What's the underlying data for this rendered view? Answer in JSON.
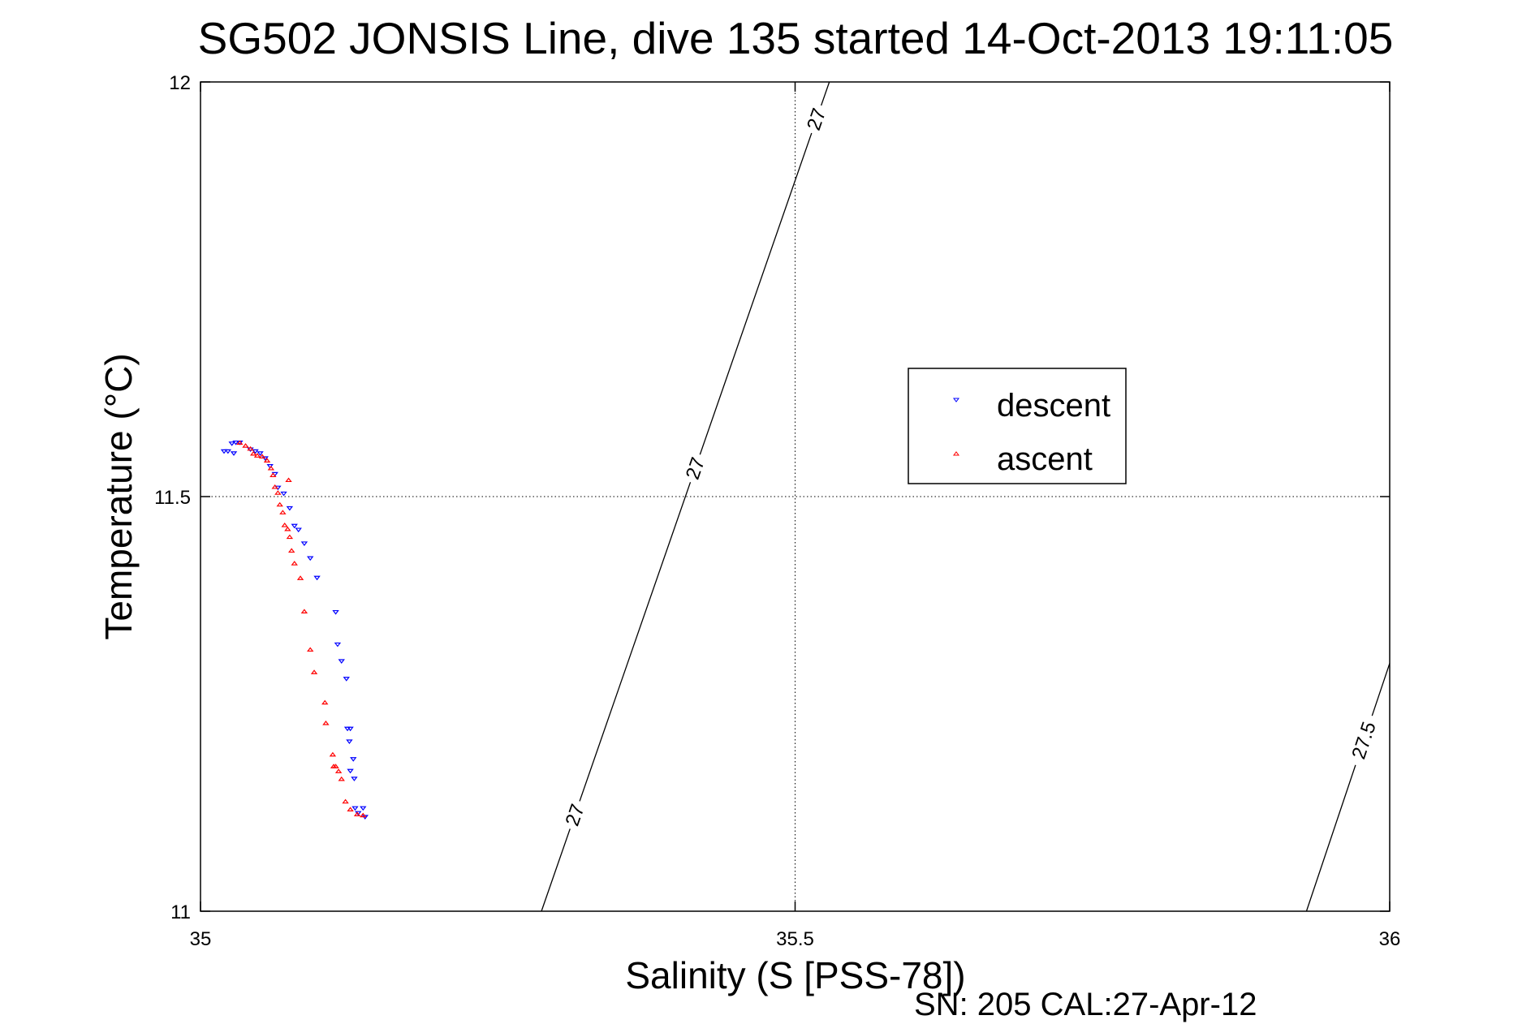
{
  "chart_data": {
    "type": "scatter",
    "title": "SG502 JONSIS Line, dive 135 started 14-Oct-2013 19:11:05",
    "xlabel": "Salinity (S [PSS-78])",
    "ylabel": "Temperature (°C)",
    "footnote": "SN: 205  CAL:27-Apr-12",
    "xlim": [
      35,
      36
    ],
    "ylim": [
      11,
      12
    ],
    "xticks": [
      35,
      35.5,
      36
    ],
    "xtick_labels": [
      "35",
      "35.5",
      "36"
    ],
    "yticks": [
      11,
      11.5,
      12
    ],
    "ytick_labels": [
      "11",
      "11.5",
      "12"
    ],
    "grid": true,
    "legend_position": "center-right",
    "series": [
      {
        "name": "descent",
        "color": "#0000ff",
        "marker": "triangle-down",
        "points": [
          [
            35.0198,
            11.5544
          ],
          [
            35.0231,
            11.5544
          ],
          [
            35.0264,
            11.5638
          ],
          [
            35.0297,
            11.565
          ],
          [
            35.028,
            11.552
          ],
          [
            35.033,
            11.565
          ],
          [
            35.042,
            11.5567
          ],
          [
            35.0461,
            11.5544
          ],
          [
            35.0502,
            11.552
          ],
          [
            35.0544,
            11.546
          ],
          [
            35.0585,
            11.5366
          ],
          [
            35.0626,
            11.527
          ],
          [
            35.0651,
            11.5106
          ],
          [
            35.07,
            11.5035
          ],
          [
            35.075,
            11.4858
          ],
          [
            35.079,
            11.4645
          ],
          [
            35.0824,
            11.4598
          ],
          [
            35.0873,
            11.4433
          ],
          [
            35.0923,
            11.4255
          ],
          [
            35.098,
            11.4019
          ],
          [
            35.1137,
            11.3605
          ],
          [
            35.1153,
            11.3215
          ],
          [
            35.1186,
            11.3014
          ],
          [
            35.1227,
            11.2801
          ],
          [
            35.1236,
            11.2199
          ],
          [
            35.126,
            11.2199
          ],
          [
            35.1252,
            11.2045
          ],
          [
            35.1285,
            11.1832
          ],
          [
            35.126,
            11.169
          ],
          [
            35.1293,
            11.1596
          ],
          [
            35.13,
            11.1241
          ],
          [
            35.1367,
            11.1241
          ],
          [
            35.1326,
            11.1182
          ],
          [
            35.1384,
            11.1135
          ]
        ]
      },
      {
        "name": "ascent",
        "color": "#ff0000",
        "marker": "triangle-up",
        "points": [
          [
            35.033,
            11.565
          ],
          [
            35.0379,
            11.5615
          ],
          [
            35.042,
            11.5579
          ],
          [
            35.0445,
            11.552
          ],
          [
            35.0478,
            11.5496
          ],
          [
            35.0519,
            11.5485
          ],
          [
            35.056,
            11.5437
          ],
          [
            35.0593,
            11.5343
          ],
          [
            35.061,
            11.526
          ],
          [
            35.0626,
            11.5118
          ],
          [
            35.0741,
            11.5201
          ],
          [
            35.0651,
            11.5047
          ],
          [
            35.0667,
            11.4905
          ],
          [
            35.0692,
            11.4811
          ],
          [
            35.0708,
            11.4657
          ],
          [
            35.0733,
            11.461
          ],
          [
            35.075,
            11.4515
          ],
          [
            35.0766,
            11.435
          ],
          [
            35.079,
            11.4196
          ],
          [
            35.084,
            11.4019
          ],
          [
            35.0873,
            11.3617
          ],
          [
            35.0923,
            11.3156
          ],
          [
            35.0956,
            11.2884
          ],
          [
            35.1046,
            11.2518
          ],
          [
            35.1054,
            11.227
          ],
          [
            35.1112,
            11.1891
          ],
          [
            35.1137,
            11.1749
          ],
          [
            35.1161,
            11.169
          ],
          [
            35.112,
            11.1749
          ],
          [
            35.1186,
            11.1596
          ],
          [
            35.1219,
            11.1324
          ],
          [
            35.126,
            11.1229
          ],
          [
            35.1318,
            11.117
          ],
          [
            35.1367,
            11.1158
          ]
        ]
      }
    ],
    "contours": [
      {
        "label": "27",
        "from": [
          35.2867,
          11
        ],
        "to": [
          35.5288,
          12
        ],
        "label_at_T": [
          11.116,
          11.534,
          11.955
        ]
      },
      {
        "label": "27.5",
        "from": [
          35.93,
          11
        ],
        "to": [
          36,
          11.299
        ],
        "label_at_T": [
          11.206
        ]
      }
    ]
  }
}
